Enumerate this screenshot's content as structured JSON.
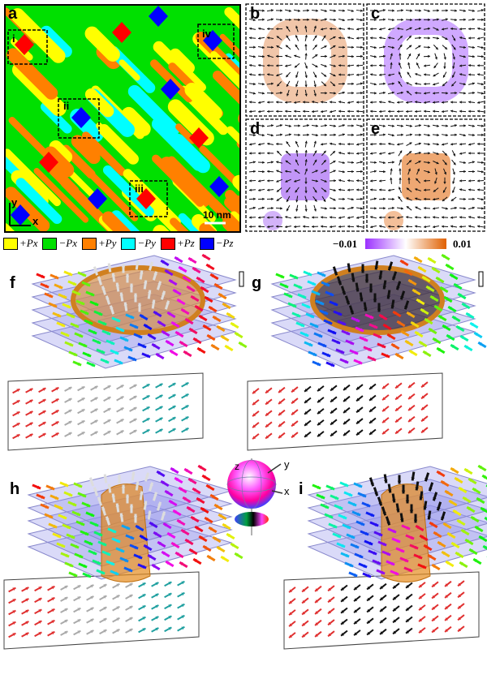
{
  "panels": {
    "a": "a",
    "b": "b",
    "c": "c",
    "d": "d",
    "e": "e",
    "f": "f",
    "g": "g",
    "h": "h",
    "i": "i"
  },
  "panel_a": {
    "regions": [
      "i",
      "ii",
      "iii",
      "iv"
    ],
    "scale_bar": "10 nm",
    "axis_x": "x",
    "axis_y": "y"
  },
  "legend": [
    {
      "label": "+Px",
      "color": "#ffff00"
    },
    {
      "label": "−Px",
      "color": "#00e000"
    },
    {
      "label": "+Py",
      "color": "#ff8000"
    },
    {
      "label": "−Py",
      "color": "#00ffff"
    },
    {
      "label": "+Pz",
      "color": "#ff0000"
    },
    {
      "label": "−Pz",
      "color": "#0000ff"
    }
  ],
  "colorbar": {
    "min": "−0.01",
    "max": "0.01",
    "min_color": "#9b30ff",
    "max_color": "#e06000"
  },
  "sphere_axes": {
    "x": "x",
    "y": "y",
    "z": "z"
  }
}
